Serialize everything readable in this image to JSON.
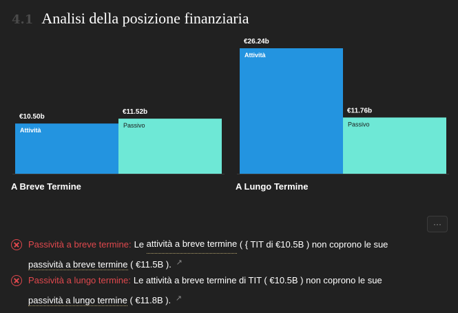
{
  "header": {
    "number": "4.1",
    "title": "Analisi della posizione finanziaria"
  },
  "colors": {
    "activity": "#2394e0",
    "passive": "#6ee8d6",
    "error": "#e0484d",
    "background": "#212121"
  },
  "chart_data": {
    "type": "bar",
    "categories": [
      "A Breve Termine",
      "A Lungo Termine"
    ],
    "series": [
      {
        "name": "Attività",
        "values": [
          10.5,
          26.24
        ],
        "labels": [
          "€10.50b",
          "€26.24b"
        ],
        "color": "#2394e0"
      },
      {
        "name": "Passivo",
        "values": [
          11.52,
          11.76
        ],
        "labels": [
          "€11.52b",
          "€11.76b"
        ],
        "color": "#6ee8d6"
      }
    ],
    "title": "",
    "xlabel": "",
    "ylabel": "",
    "ylim": [
      0,
      26.24
    ],
    "grid": false,
    "legend": "none"
  },
  "more_button": {
    "label": "···"
  },
  "issues": [
    {
      "label": "Passività a breve termine:",
      "t1": "Le",
      "link1": "attività a breve termine",
      "t2": "( { TIT di €10.5B ) non coprono le sue",
      "link2": "passività a breve termine",
      "t3": "( €11.5B ).",
      "icon": "external-edit-icon"
    },
    {
      "label": "Passività a lungo termine:",
      "t1": "Le attività a breve termine di TIT ( €10.5B ) non coprono le sue",
      "link1": "",
      "t2": "",
      "link2": "passività a lungo termine",
      "t3": "( €11.8B ).",
      "icon": "external-edit-icon"
    }
  ]
}
